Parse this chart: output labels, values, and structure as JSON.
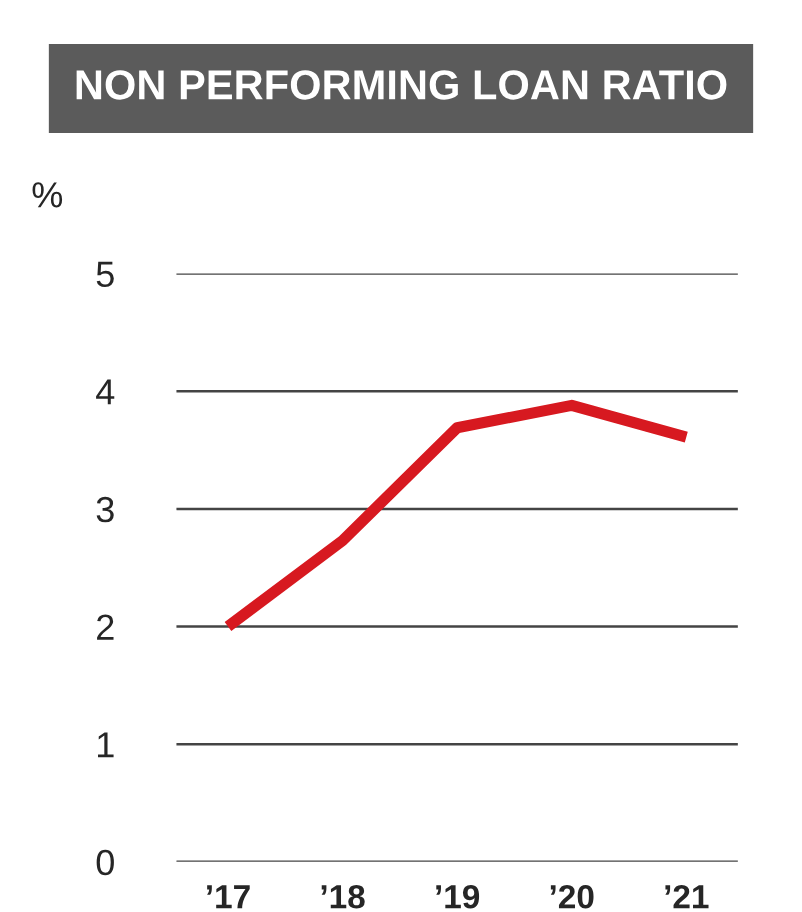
{
  "chart_data": {
    "type": "line",
    "title": "NON PERFORMING LOAN RATIO",
    "ylabel": "%",
    "categories": [
      "’17",
      "’18",
      "’19",
      "’20",
      "’21"
    ],
    "series": [
      {
        "color": "#d71920",
        "values": [
          2.0,
          2.73,
          3.69,
          3.88,
          3.61
        ]
      }
    ],
    "ylim": [
      0,
      5
    ],
    "yticks": [
      0,
      1,
      2,
      3,
      4,
      5
    ],
    "grid": "y",
    "marker": "none",
    "line_style": "solid"
  }
}
